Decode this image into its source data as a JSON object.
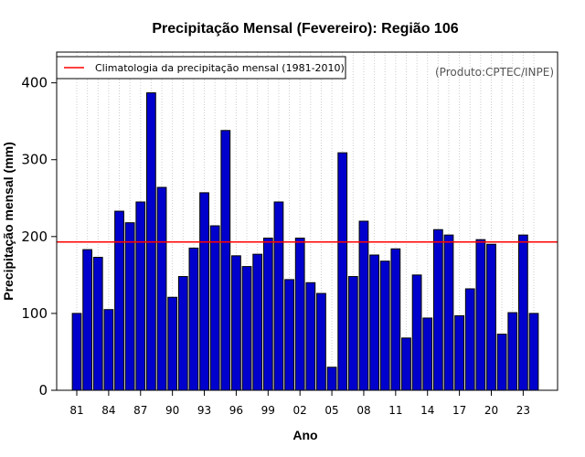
{
  "chart_data": {
    "type": "bar",
    "title": "Precipitação Mensal (Fevereiro): Região 106",
    "xlabel": "Ano",
    "ylabel": "Precipitação mensal (mm)",
    "credit": "(Produto:CPTEC/INPE)",
    "legend": {
      "label": "Climatologia da precipitação mensal (1981-2010)",
      "placement": "top-left"
    },
    "ylim": [
      0,
      440
    ],
    "yticks": [
      0,
      100,
      200,
      300,
      400
    ],
    "grid": "vertical-dotted",
    "categories": [
      "1981",
      "1982",
      "1983",
      "1984",
      "1985",
      "1986",
      "1987",
      "1988",
      "1989",
      "1990",
      "1991",
      "1992",
      "1993",
      "1994",
      "1995",
      "1996",
      "1997",
      "1998",
      "1999",
      "2000",
      "2001",
      "2002",
      "2003",
      "2004",
      "2005",
      "2006",
      "2007",
      "2008",
      "2009",
      "2010",
      "2011",
      "2012",
      "2013",
      "2014",
      "2015",
      "2016",
      "2017",
      "2018",
      "2019",
      "2020",
      "2021",
      "2022",
      "2023",
      "2024"
    ],
    "xtick_labels": [
      {
        "index": 0,
        "label": "81"
      },
      {
        "index": 3,
        "label": "84"
      },
      {
        "index": 6,
        "label": "87"
      },
      {
        "index": 9,
        "label": "90"
      },
      {
        "index": 12,
        "label": "93"
      },
      {
        "index": 15,
        "label": "96"
      },
      {
        "index": 18,
        "label": "99"
      },
      {
        "index": 21,
        "label": "02"
      },
      {
        "index": 24,
        "label": "05"
      },
      {
        "index": 27,
        "label": "08"
      },
      {
        "index": 30,
        "label": "11"
      },
      {
        "index": 33,
        "label": "14"
      },
      {
        "index": 36,
        "label": "17"
      },
      {
        "index": 39,
        "label": "20"
      },
      {
        "index": 42,
        "label": "23"
      }
    ],
    "values": [
      100,
      183,
      173,
      105,
      233,
      218,
      245,
      387,
      264,
      121,
      148,
      185,
      257,
      214,
      338,
      175,
      161,
      177,
      198,
      245,
      144,
      198,
      140,
      126,
      30,
      309,
      148,
      220,
      176,
      168,
      184,
      68,
      150,
      94,
      209,
      202,
      97,
      132,
      196,
      190,
      73,
      101,
      202,
      100
    ],
    "climatology": 193,
    "colors": {
      "bar_fill": "#0000cd",
      "bar_stroke": "#000000",
      "climatology_line": "#ff0000",
      "grid": "#cccccc"
    }
  }
}
